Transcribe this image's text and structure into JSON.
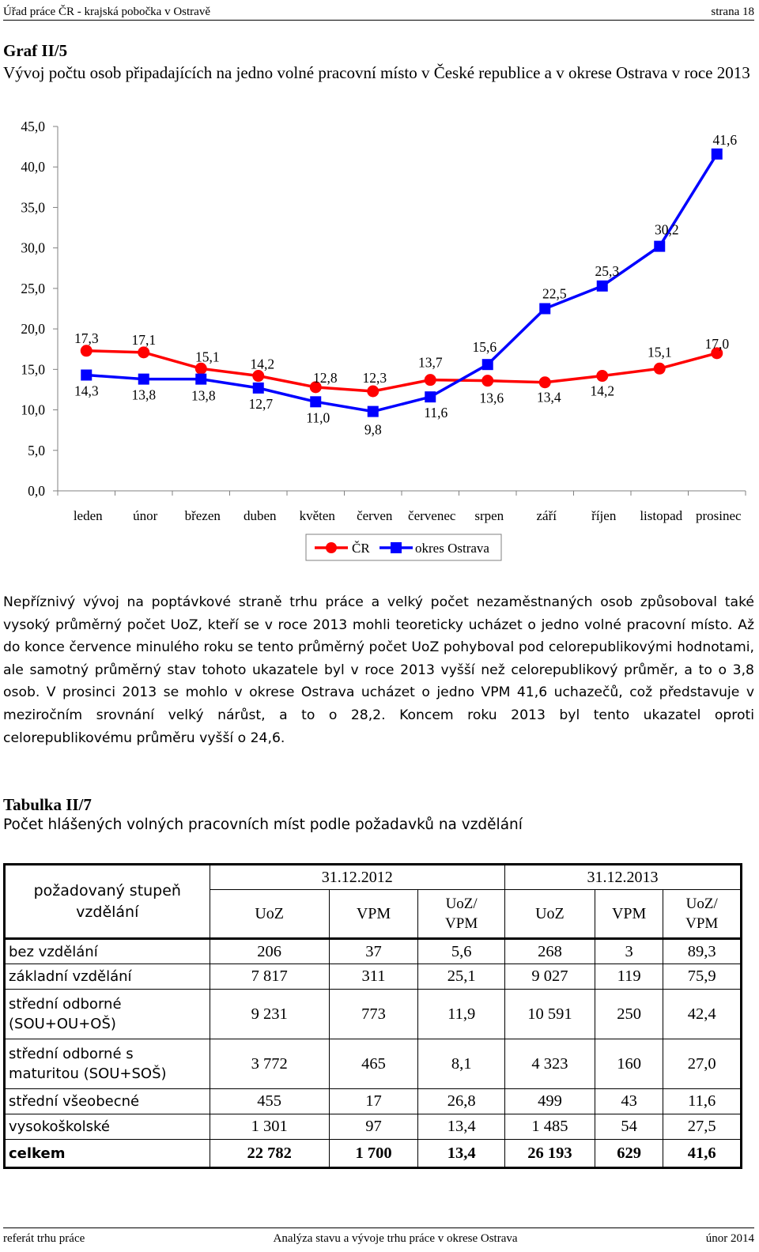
{
  "header": {
    "left": "Úřad práce ČR - krajská pobočka v Ostravě",
    "right": "strana 18"
  },
  "footer": {
    "left": "referát trhu práce",
    "center": "Analýza stavu a vývoje trhu práce v okrese Ostrava",
    "right": "únor  2014"
  },
  "graph": {
    "label": "Graf II/5",
    "subtitle": "Vývoj počtu osob připadajících na jedno volné pracovní místo v České republice a v okrese Ostrava v roce 2013"
  },
  "chart_data": {
    "type": "line",
    "categories": [
      "leden",
      "únor",
      "březen",
      "duben",
      "květen",
      "červen",
      "červenec",
      "srpen",
      "září",
      "říjen",
      "listopad",
      "prosinec"
    ],
    "series": [
      {
        "name": "ČR",
        "color": "#ff0000",
        "marker": "circle",
        "values": [
          17.3,
          17.1,
          15.1,
          14.2,
          12.8,
          12.3,
          13.7,
          13.6,
          13.4,
          14.2,
          15.1,
          17.0
        ],
        "labels": [
          "17,3",
          "17,1",
          "15,1",
          "14,2",
          "12,8",
          "12,3",
          "13,7",
          "13,6",
          "13,4",
          "14,2",
          "15,1",
          "17,0"
        ]
      },
      {
        "name": "okres Ostrava",
        "color": "#0000ff",
        "marker": "square",
        "values": [
          14.3,
          13.8,
          13.8,
          12.7,
          11.0,
          9.8,
          11.6,
          15.6,
          22.5,
          25.3,
          30.2,
          41.6
        ],
        "labels": [
          "14,3",
          "13,8",
          "13,8",
          "12,7",
          "11,0",
          "9,8",
          "11,6",
          "15,6",
          "22,5",
          "25,3",
          "30,2",
          "41,6"
        ]
      }
    ],
    "ylim": [
      0,
      45
    ],
    "yticks": [
      "0,0",
      "5,0",
      "10,0",
      "15,0",
      "20,0",
      "25,0",
      "30,0",
      "35,0",
      "40,0",
      "45,0"
    ],
    "legend": "bottom-center",
    "grid": false
  },
  "paragraph": "Nepříznivý vývoj na poptávkové straně trhu práce a velký počet nezaměstnaných osob způsoboval také vysoký průměrný počet UoZ, kteří se v roce 2013 mohli teoreticky ucházet o jedno volné pracovní místo. Až do konce července minulého roku se tento průměrný počet UoZ pohyboval pod celorepublikovými hodnotami, ale samotný průměrný stav tohoto ukazatele byl v roce 2013 vyšší než celorepublikový průměr, a to o 3,8 osob. V prosinci 2013 se mohlo v okrese Ostrava ucházet o jedno VPM 41,6 uchazečů, což představuje v meziročním srovnání velký nárůst, a to o 28,2. Koncem roku 2013 byl tento ukazatel oproti celorepublikovému průměru vyšší o 24,6.",
  "table": {
    "label": "Tabulka II/7",
    "subtitle": "Počet hlášených volných pracovních míst podle požadavků na vzdělání",
    "corner": "požadovaný stupeň vzdělání",
    "date1": "31.12.2012",
    "date2": "31.12.2013",
    "cols": [
      "UoZ",
      "VPM",
      "UoZ/ VPM",
      "UoZ",
      "VPM",
      "UoZ/ VPM"
    ],
    "rows": [
      {
        "label": "bez vzdělání",
        "v": [
          "206",
          "37",
          "5,6",
          "268",
          "3",
          "89,3"
        ]
      },
      {
        "label": "základní vzdělání",
        "v": [
          "7 817",
          "311",
          "25,1",
          "9 027",
          "119",
          "75,9"
        ]
      },
      {
        "label": "střední odborné (SOU+OU+OŠ)",
        "v": [
          "9 231",
          "773",
          "11,9",
          "10 591",
          "250",
          "42,4"
        ]
      },
      {
        "label": "střední odborné s maturitou (SOU+SOŠ)",
        "v": [
          "3 772",
          "465",
          "8,1",
          "4 323",
          "160",
          "27,0"
        ]
      },
      {
        "label": "střední všeobecné",
        "v": [
          "455",
          "17",
          "26,8",
          "499",
          "43",
          "11,6"
        ]
      },
      {
        "label": "vysokoškolské",
        "v": [
          "1 301",
          "97",
          "13,4",
          "1 485",
          "54",
          "27,5"
        ]
      },
      {
        "label": "celkem",
        "v": [
          "22 782",
          "1 700",
          "13,4",
          "26 193",
          "629",
          "41,6"
        ]
      }
    ]
  }
}
